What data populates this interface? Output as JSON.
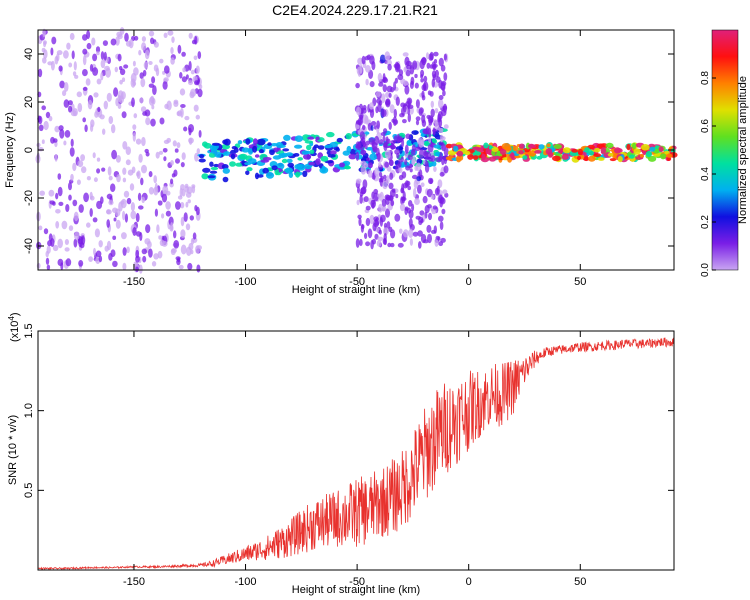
{
  "title": "C2E4.2024.229.17.21.R21",
  "colors": {
    "snr_line": "#e8322e",
    "colormap": [
      "#c9a6f2",
      "#7a1ee6",
      "#1010e0",
      "#00b0f0",
      "#00e0a0",
      "#60e020",
      "#e0e000",
      "#ff8000",
      "#ff1010",
      "#e0207a"
    ]
  },
  "chart_data": [
    {
      "type": "heatmap",
      "description_of_data": "spectrogram",
      "xlabel": "Height of straight line (km)",
      "ylabel": "Frequency (Hz)",
      "xlim": [
        -193,
        92
      ],
      "ylim": [
        -50,
        50
      ],
      "xticks": [
        -150,
        -100,
        -50,
        0,
        50
      ],
      "yticks": [
        -40,
        -20,
        0,
        20,
        40
      ],
      "grid": false,
      "colorbar": {
        "label": "Normalized spectral amplitude",
        "range": [
          0,
          1
        ],
        "ticks": [
          0.0,
          0.2,
          0.4,
          0.6,
          0.8
        ]
      },
      "features": [
        {
          "x_range": [
            -193,
            -120
          ],
          "y_range": [
            -50,
            50
          ],
          "amplitude": 0.1,
          "pattern": "scattered"
        },
        {
          "x_range": [
            -120,
            -10
          ],
          "y_range": [
            -8,
            8
          ],
          "amplitude": 0.35,
          "pattern": "band near 0 Hz"
        },
        {
          "x_range": [
            -50,
            -10
          ],
          "y_range": [
            -40,
            40
          ],
          "amplitude": 0.15,
          "pattern": "scattered"
        },
        {
          "x_range": [
            -10,
            92
          ],
          "y_range": [
            -4,
            2
          ],
          "amplitude": 0.8,
          "pattern": "narrow line near -1 Hz"
        }
      ]
    },
    {
      "type": "line",
      "xlabel": "Height of straight line (km)",
      "ylabel": "SNR (10 * v/v)",
      "multiplier_label": "(x10",
      "multiplier_exponent": "4",
      "multiplier_close": ")",
      "xlim": [
        -193,
        92
      ],
      "ylim": [
        0,
        1.5
      ],
      "xticks": [
        -150,
        -100,
        -50,
        0,
        50
      ],
      "yticks": [
        0.5,
        1.0,
        1.5
      ],
      "grid": false,
      "series": [
        {
          "x": [
            -193,
            -180,
            -170,
            -160,
            -150,
            -140,
            -130,
            -120,
            -115,
            -110,
            -105,
            -100,
            -95,
            -90,
            -85,
            -80,
            -75,
            -70,
            -65,
            -60,
            -55,
            -50,
            -45,
            -40,
            -35,
            -30,
            -25,
            -20,
            -15,
            -10,
            -5,
            0,
            5,
            10,
            15,
            20,
            25,
            30,
            35,
            40,
            45,
            50,
            55,
            60,
            65,
            70,
            75,
            80,
            85,
            92
          ],
          "y": [
            0.01,
            0.01,
            0.015,
            0.015,
            0.02,
            0.02,
            0.025,
            0.03,
            0.04,
            0.06,
            0.08,
            0.1,
            0.12,
            0.14,
            0.17,
            0.2,
            0.24,
            0.28,
            0.3,
            0.32,
            0.34,
            0.36,
            0.38,
            0.42,
            0.45,
            0.5,
            0.6,
            0.72,
            0.82,
            0.9,
            0.95,
            1.0,
            1.05,
            1.1,
            1.1,
            1.15,
            1.25,
            1.33,
            1.37,
            1.38,
            1.39,
            1.4,
            1.4,
            1.41,
            1.41,
            1.42,
            1.42,
            1.42,
            1.43,
            1.43
          ],
          "noise_amplitude": [
            0.005,
            0.005,
            0.005,
            0.005,
            0.005,
            0.006,
            0.008,
            0.01,
            0.02,
            0.03,
            0.04,
            0.05,
            0.06,
            0.08,
            0.1,
            0.12,
            0.14,
            0.16,
            0.17,
            0.18,
            0.2,
            0.22,
            0.22,
            0.22,
            0.24,
            0.25,
            0.28,
            0.3,
            0.32,
            0.3,
            0.28,
            0.25,
            0.22,
            0.2,
            0.2,
            0.18,
            0.1,
            0.05,
            0.03,
            0.03,
            0.03,
            0.03,
            0.03,
            0.03,
            0.03,
            0.03,
            0.03,
            0.03,
            0.03,
            0.03
          ]
        }
      ]
    }
  ]
}
